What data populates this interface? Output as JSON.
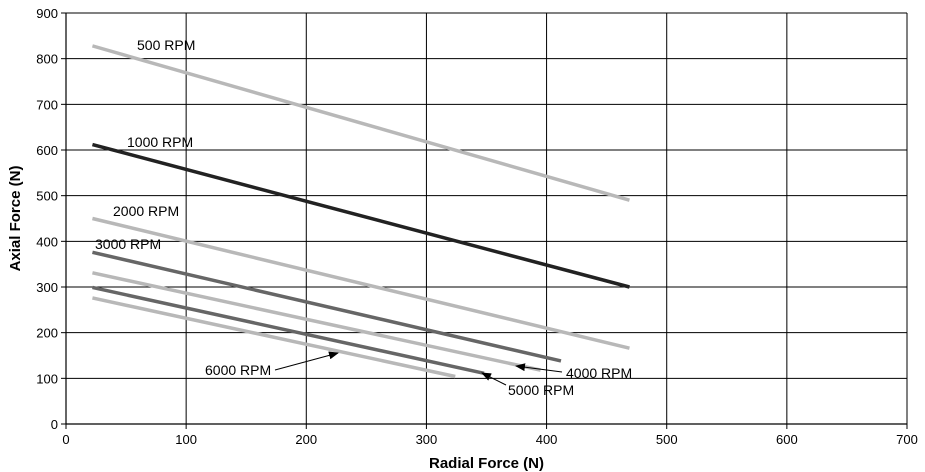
{
  "chart_data": {
    "type": "line",
    "xlabel": "Radial Force (N)",
    "ylabel": "Axial Force (N)",
    "xlim": [
      0,
      700
    ],
    "ylim": [
      0,
      900
    ],
    "x_ticks": [
      "0",
      "100",
      "200",
      "300",
      "400",
      "500",
      "600",
      "700"
    ],
    "y_ticks": [
      "0",
      "100",
      "200",
      "300",
      "400",
      "500",
      "600",
      "700",
      "800",
      "900"
    ],
    "grid": true,
    "series": [
      {
        "name": "500 RPM",
        "color": "#b8b8b8",
        "x": [
          22,
          469
        ],
        "y": [
          828,
          490
        ]
      },
      {
        "name": "1000 RPM",
        "color": "#222222",
        "x": [
          22,
          469
        ],
        "y": [
          612,
          300
        ]
      },
      {
        "name": "2000 RPM",
        "color": "#b8b8b8",
        "x": [
          22,
          469
        ],
        "y": [
          450,
          166
        ]
      },
      {
        "name": "3000 RPM",
        "color": "#666666",
        "x": [
          22,
          412
        ],
        "y": [
          376,
          138
        ]
      },
      {
        "name": "4000 RPM",
        "color": "#b8b8b8",
        "x": [
          22,
          395
        ],
        "y": [
          331,
          118
        ]
      },
      {
        "name": "5000 RPM",
        "color": "#666666",
        "x": [
          22,
          348
        ],
        "y": [
          299,
          111
        ]
      },
      {
        "name": "6000 RPM",
        "color": "#b8b8b8",
        "x": [
          22,
          324
        ],
        "y": [
          276,
          104
        ]
      }
    ]
  }
}
